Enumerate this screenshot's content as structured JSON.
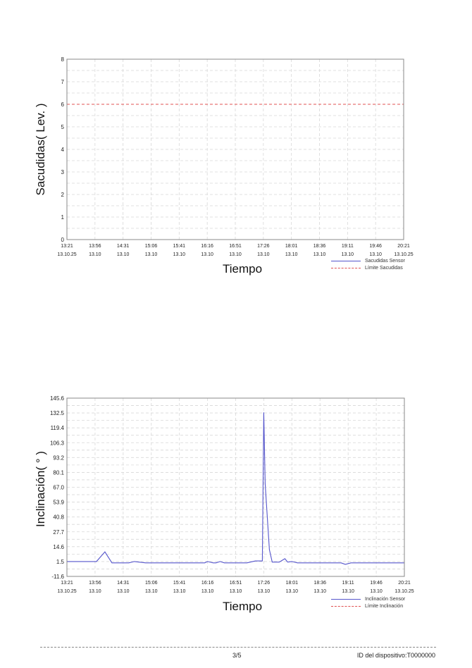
{
  "chart_data": [
    {
      "type": "line",
      "title": "",
      "ylabel": "Sacudidas( Lev. )",
      "xlabel": "Tiempo",
      "ylim": [
        0,
        8
      ],
      "yticks": [
        "0",
        "1",
        "2",
        "3",
        "4",
        "5",
        "6",
        "7",
        "8"
      ],
      "ytick_values": [
        0,
        1,
        2,
        3,
        4,
        5,
        6,
        7,
        8
      ],
      "xticks": [
        {
          "time": "13:21",
          "date": "13.10.25"
        },
        {
          "time": "13:56",
          "date": "13.10"
        },
        {
          "time": "14:31",
          "date": "13.10"
        },
        {
          "time": "15:06",
          "date": "13.10"
        },
        {
          "time": "15:41",
          "date": "13.10"
        },
        {
          "time": "16:16",
          "date": "13.10"
        },
        {
          "time": "16:51",
          "date": "13.10"
        },
        {
          "time": "17:26",
          "date": "13.10"
        },
        {
          "time": "18:01",
          "date": "13.10"
        },
        {
          "time": "18:36",
          "date": "13.10"
        },
        {
          "time": "19:11",
          "date": "13.10"
        },
        {
          "time": "19:46",
          "date": "13.10"
        },
        {
          "time": "20:21",
          "date": "13.10.25"
        }
      ],
      "grid": true,
      "legend_position": "bottom-right",
      "series": [
        {
          "name": "Sacudidas Sensor",
          "style": "solid",
          "color": "#5555cc",
          "x": [
            0,
            12
          ],
          "values": [
            0,
            0
          ]
        },
        {
          "name": "Límite Sacudidas",
          "style": "dashed",
          "color": "#e05050",
          "x": [
            0,
            12
          ],
          "values": [
            6,
            6
          ]
        }
      ]
    },
    {
      "type": "line",
      "title": "",
      "ylabel": "Inclinación( ° )",
      "xlabel": "Tiempo",
      "ylim": [
        -11.6,
        145.6
      ],
      "yticks": [
        "-11.6",
        "1.5",
        "14.6",
        "27.7",
        "40.8",
        "53.9",
        "67.0",
        "80.1",
        "93.2",
        "106.3",
        "119.4",
        "132.5",
        "145.6"
      ],
      "ytick_values": [
        -11.6,
        1.5,
        14.6,
        27.7,
        40.8,
        53.9,
        67.0,
        80.1,
        93.2,
        106.3,
        119.4,
        132.5,
        145.6
      ],
      "xticks": [
        {
          "time": "13:21",
          "date": "13.10.25"
        },
        {
          "time": "13:56",
          "date": "13.10"
        },
        {
          "time": "14:31",
          "date": "13.10"
        },
        {
          "time": "15:06",
          "date": "13.10"
        },
        {
          "time": "15:41",
          "date": "13.10"
        },
        {
          "time": "16:16",
          "date": "13.10"
        },
        {
          "time": "16:51",
          "date": "13.10"
        },
        {
          "time": "17:26",
          "date": "13.10"
        },
        {
          "time": "18:01",
          "date": "13.10"
        },
        {
          "time": "18:36",
          "date": "13.10"
        },
        {
          "time": "19:11",
          "date": "13.10"
        },
        {
          "time": "19:46",
          "date": "13.10"
        },
        {
          "time": "20:21",
          "date": "13.10.25"
        }
      ],
      "grid": true,
      "legend_position": "bottom-right",
      "series": [
        {
          "name": "Inclinación Sensor",
          "style": "solid",
          "color": "#5555cc",
          "x": [
            0,
            1.05,
            1.35,
            1.6,
            2.0,
            2.2,
            2.4,
            2.8,
            3.5,
            4.5,
            4.9,
            5.0,
            5.2,
            5.3,
            5.45,
            5.6,
            5.75,
            6.0,
            6.4,
            6.7,
            6.95,
            7.0,
            7.05,
            7.2,
            7.3,
            7.4,
            7.55,
            7.75,
            7.85,
            8.0,
            8.2,
            8.3,
            8.6,
            9.0,
            9.5,
            9.75,
            9.9,
            10.1,
            10.5,
            11.0,
            12.0
          ],
          "values": [
            1.5,
            1.5,
            10.0,
            0.3,
            0.3,
            0.3,
            1.5,
            0.3,
            0.3,
            0.3,
            0.3,
            1.5,
            0.3,
            0.3,
            1.5,
            0.3,
            0.3,
            0.3,
            0.3,
            2.0,
            2.0,
            133.0,
            70.0,
            12.0,
            1.0,
            1.0,
            1.0,
            4.0,
            1.0,
            1.5,
            0.3,
            0.3,
            0.3,
            0.3,
            0.3,
            0.3,
            -1.0,
            0.3,
            0.3,
            0.3,
            0.3
          ]
        },
        {
          "name": "Límite Inclinación",
          "style": "dashed",
          "color": "#e05050",
          "x": [],
          "values": []
        }
      ]
    }
  ],
  "charts": [
    {
      "ylabel": "Sacudidas( Lev. )",
      "xlabel": "Tiempo",
      "legend": [
        "Sacudidas Sensor",
        "Límite Sacudidas"
      ]
    },
    {
      "ylabel": "Inclinación( ° )",
      "xlabel": "Tiempo",
      "legend": [
        "Inclinación Sensor",
        "Límite Inclinación"
      ]
    }
  ],
  "footer": {
    "page": "3/5",
    "device_id": "ID del dispositivo:T0000000"
  },
  "colors": {
    "sensor": "#5555cc",
    "limit": "#e05050",
    "grid": "#d8d8d8",
    "frame": "#888888"
  }
}
